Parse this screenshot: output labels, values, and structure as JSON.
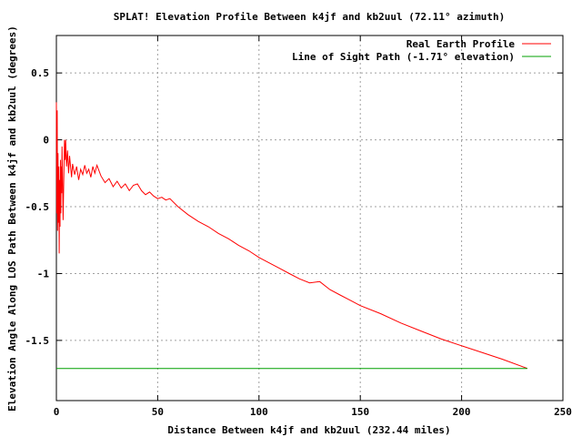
{
  "chart_data": {
    "type": "line",
    "title": "SPLAT! Elevation Profile Between k4jf and kb2uul (72.11° azimuth)",
    "xlabel": "Distance Between k4jf and kb2uul (232.44 miles)",
    "ylabel": "Elevation Angle Along LOS Path Between k4jf and kb2uul (degrees)",
    "xlim": [
      0,
      250
    ],
    "ylim": [
      -1.95,
      0.78
    ],
    "x_ticks": [
      0,
      50,
      100,
      150,
      200,
      250
    ],
    "y_ticks": [
      0.5,
      0,
      -0.5,
      -1,
      -1.5
    ],
    "x_tick_labels": [
      "0",
      "50",
      "100",
      "150",
      "200",
      "250"
    ],
    "y_tick_labels": [
      "0.5",
      "0",
      "-0.5",
      "-1",
      "-1.5"
    ],
    "grid": true,
    "legend_position": "top-right",
    "series": [
      {
        "name": "Real Earth Profile",
        "color": "#ff0000",
        "x": [
          0,
          0.2,
          0.4,
          0.6,
          0.8,
          1.0,
          1.2,
          1.4,
          1.6,
          1.8,
          2.0,
          2.2,
          2.4,
          2.6,
          2.8,
          3.0,
          3.3,
          3.6,
          4.0,
          4.3,
          4.6,
          5.0,
          5.5,
          6.0,
          6.5,
          7.0,
          7.5,
          8,
          9,
          10,
          11,
          12,
          13,
          14,
          15,
          16,
          17,
          18,
          19,
          20,
          22,
          24,
          26,
          28,
          30,
          32,
          34,
          36,
          38,
          40,
          42,
          44,
          46,
          48,
          50,
          52,
          54,
          56,
          60,
          65,
          70,
          75,
          80,
          85,
          90,
          95,
          100,
          105,
          110,
          115,
          120,
          125,
          130,
          135,
          140,
          145,
          150,
          160,
          170,
          180,
          190,
          200,
          210,
          220,
          232.44
        ],
        "values": [
          0.28,
          -0.55,
          0.22,
          -0.68,
          -0.1,
          -0.62,
          -0.2,
          -0.85,
          -0.3,
          -0.65,
          -0.15,
          -0.55,
          -0.2,
          -0.4,
          -0.05,
          -0.25,
          -0.6,
          -0.35,
          0.0,
          -0.15,
          0.0,
          -0.2,
          -0.08,
          -0.25,
          -0.12,
          -0.2,
          -0.28,
          -0.18,
          -0.26,
          -0.2,
          -0.3,
          -0.22,
          -0.26,
          -0.19,
          -0.25,
          -0.22,
          -0.28,
          -0.2,
          -0.25,
          -0.19,
          -0.27,
          -0.32,
          -0.29,
          -0.35,
          -0.31,
          -0.36,
          -0.33,
          -0.38,
          -0.34,
          -0.33,
          -0.38,
          -0.41,
          -0.39,
          -0.42,
          -0.44,
          -0.43,
          -0.45,
          -0.44,
          -0.5,
          -0.56,
          -0.61,
          -0.65,
          -0.7,
          -0.74,
          -0.79,
          -0.83,
          -0.88,
          -0.92,
          -0.96,
          -1.0,
          -1.04,
          -1.07,
          -1.06,
          -1.12,
          -1.16,
          -1.2,
          -1.24,
          -1.3,
          -1.37,
          -1.43,
          -1.49,
          -1.54,
          -1.59,
          -1.64,
          -1.71
        ]
      },
      {
        "name": "Line of Sight Path (-1.71° elevation)",
        "color": "#00a000",
        "x": [
          0,
          232.44
        ],
        "values": [
          -1.71,
          -1.71
        ]
      }
    ]
  }
}
